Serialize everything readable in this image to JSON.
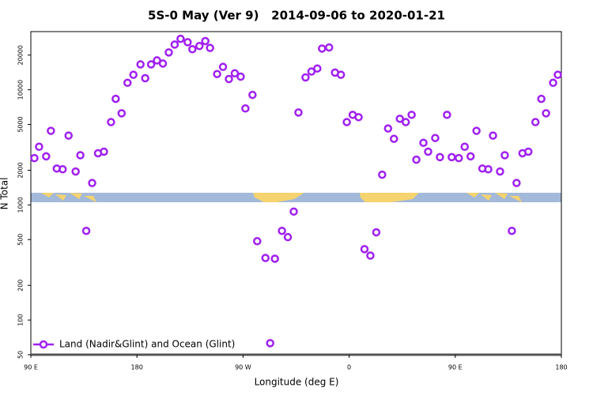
{
  "chart_data": {
    "type": "scatter",
    "title": "5S-0 May (Ver 9)   2014-09-06 to 2020-01-21",
    "xlabel": "Longitude (deg E)",
    "ylabel": "N Total",
    "log_y": true,
    "legend": "lower left",
    "xlim": [
      90,
      540
    ],
    "ylim": [
      50,
      32000
    ],
    "xticks": [
      {
        "value": 90,
        "label": "90 E"
      },
      180,
      {
        "value": 270,
        "label": "90 W"
      },
      {
        "value": 360,
        "label": "0"
      },
      {
        "value": 450,
        "label": "90 E"
      },
      {
        "value": 540,
        "label": "180"
      }
    ],
    "yticks": [
      50,
      100,
      200,
      500,
      1000,
      2000,
      5000,
      10000,
      20000
    ],
    "x": [
      93,
      97,
      103,
      107,
      112,
      117,
      122,
      128,
      132,
      137,
      142,
      147,
      152,
      158,
      162,
      167,
      172,
      177,
      183,
      187,
      192,
      197,
      202,
      207,
      212,
      217,
      223,
      227,
      233,
      238,
      242,
      248,
      253,
      258,
      263,
      268,
      272,
      278,
      282,
      289,
      297,
      293,
      303,
      308,
      313,
      317,
      323,
      328,
      333,
      337,
      343,
      348,
      353,
      358,
      363,
      368,
      373,
      378,
      383,
      388,
      393,
      398,
      403,
      408,
      413,
      417,
      423,
      427,
      433,
      437,
      443,
      447,
      453,
      458,
      463,
      468,
      473,
      478,
      482,
      488,
      492,
      498,
      502,
      507,
      512,
      518,
      523,
      527,
      533,
      537
    ],
    "series": [
      {
        "name": "Land (Nadir&Glint) and Ocean (Glint)",
        "color": "#a020f0",
        "values": [
          2550,
          3200,
          2640,
          4400,
          2070,
          2040,
          4000,
          1950,
          2700,
          595,
          1550,
          2810,
          2900,
          5240,
          8340,
          6250,
          11500,
          13500,
          16600,
          12600,
          16600,
          18000,
          16900,
          21100,
          24700,
          27700,
          25900,
          22500,
          24000,
          26500,
          23100,
          13700,
          15800,
          12400,
          13900,
          13000,
          6880,
          9030,
          484,
          346,
          341,
          63,
          595,
          525,
          875,
          6350,
          12800,
          14400,
          15300,
          22800,
          23300,
          14100,
          13500,
          5240,
          6060,
          5780,
          413,
          363,
          578,
          1830,
          4610,
          3750,
          5600,
          5240,
          6060,
          2470,
          3460,
          2900,
          3810,
          2600,
          6060,
          2600,
          2550,
          3200,
          2640,
          4400,
          2070,
          2040,
          4000,
          1950,
          2700,
          595,
          1550,
          2810,
          2900,
          5240,
          8340,
          6250,
          11500,
          13500
        ]
      }
    ]
  }
}
